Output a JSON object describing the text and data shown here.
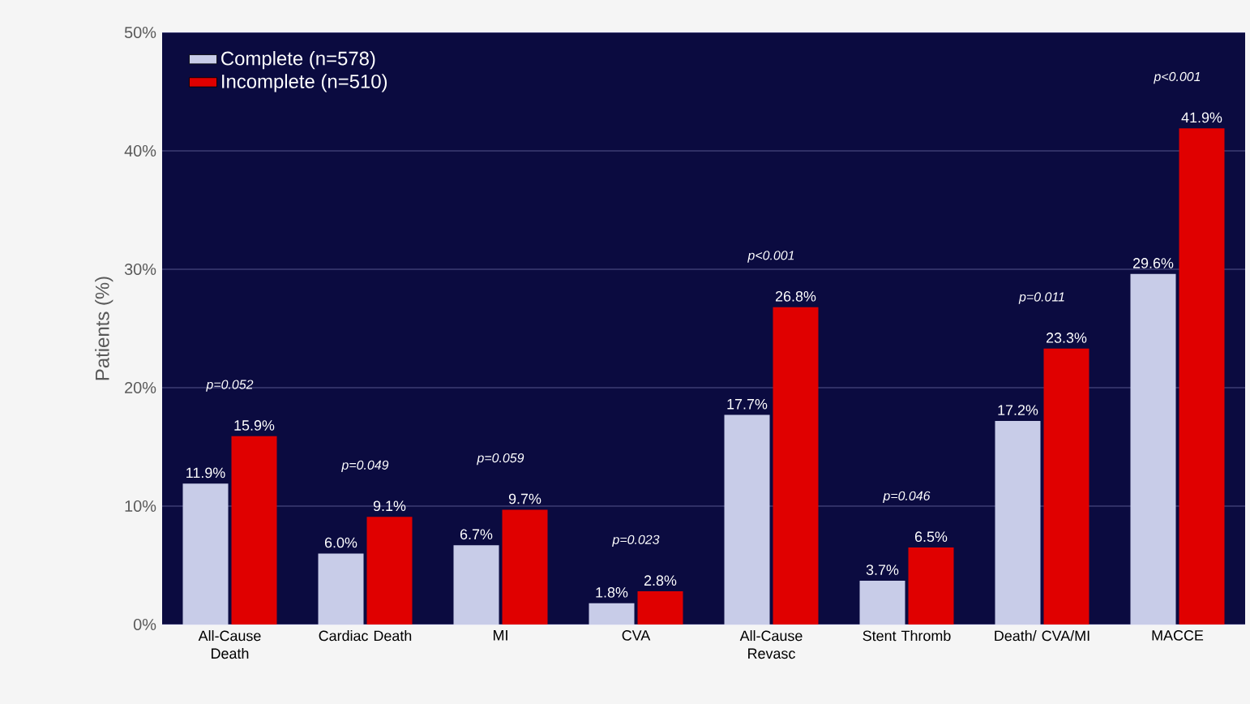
{
  "chart_data": {
    "type": "bar",
    "ylabel": "Patients (%)",
    "categories": [
      "All-Cause Death",
      "Cardiac Death",
      "MI",
      "CVA",
      "All-Cause Revasc",
      "Stent Thromb",
      "Death/ CVA/MI",
      "MACCE"
    ],
    "series": [
      {
        "name": "Complete (n=578)",
        "color": "#c8cce8",
        "values": [
          11.9,
          6.0,
          6.7,
          1.8,
          17.7,
          3.7,
          17.2,
          29.6
        ],
        "value_labels": [
          "11.9%",
          "6.0%",
          "6.7%",
          "1.8%",
          "17.7%",
          "3.7%",
          "17.2%",
          "29.6%"
        ]
      },
      {
        "name": "Incomplete (n=510)",
        "color": "#e00000",
        "values": [
          15.9,
          9.1,
          9.7,
          2.8,
          26.8,
          6.5,
          23.3,
          41.9
        ],
        "value_labels": [
          "15.9%",
          "9.1%",
          "9.7%",
          "2.8%",
          "26.8%",
          "6.5%",
          "23.3%",
          "41.9%"
        ]
      }
    ],
    "ylim": [
      0,
      50
    ],
    "yticks": [
      {
        "value": 0,
        "label": "0%"
      },
      {
        "value": 10,
        "label": "10%"
      },
      {
        "value": 20,
        "label": "20%"
      },
      {
        "value": 30,
        "label": "30%"
      },
      {
        "value": 40,
        "label": "40%"
      },
      {
        "value": 50,
        "label": "50%"
      }
    ],
    "annotations": [
      "p=0.052",
      "p=0.049",
      "p=0.059",
      "p=0.023",
      "p<0.001",
      "p=0.046",
      "p=0.011",
      "p<0.001"
    ],
    "grid": "y",
    "legend": "top left"
  }
}
